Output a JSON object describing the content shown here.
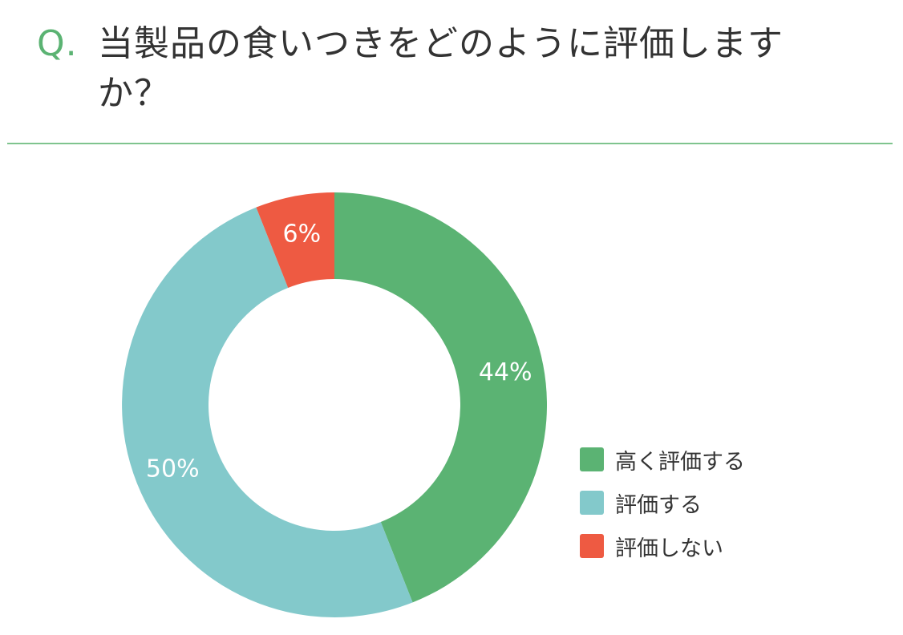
{
  "question": {
    "mark": "Q.",
    "text": "当製品の食いつきをどのように評価しますか？"
  },
  "colors": {
    "accent": "#5bb373",
    "rule": "#7fc48e"
  },
  "chart_data": {
    "type": "pie",
    "donut": true,
    "categories": [
      "高く評価する",
      "評価する",
      "評価しない"
    ],
    "values": [
      44,
      50,
      6
    ],
    "value_labels": [
      "44%",
      "50%",
      "6%"
    ],
    "colors": [
      "#5bb373",
      "#83c9cb",
      "#ee5a42"
    ],
    "legend_position": "bottom-right"
  }
}
